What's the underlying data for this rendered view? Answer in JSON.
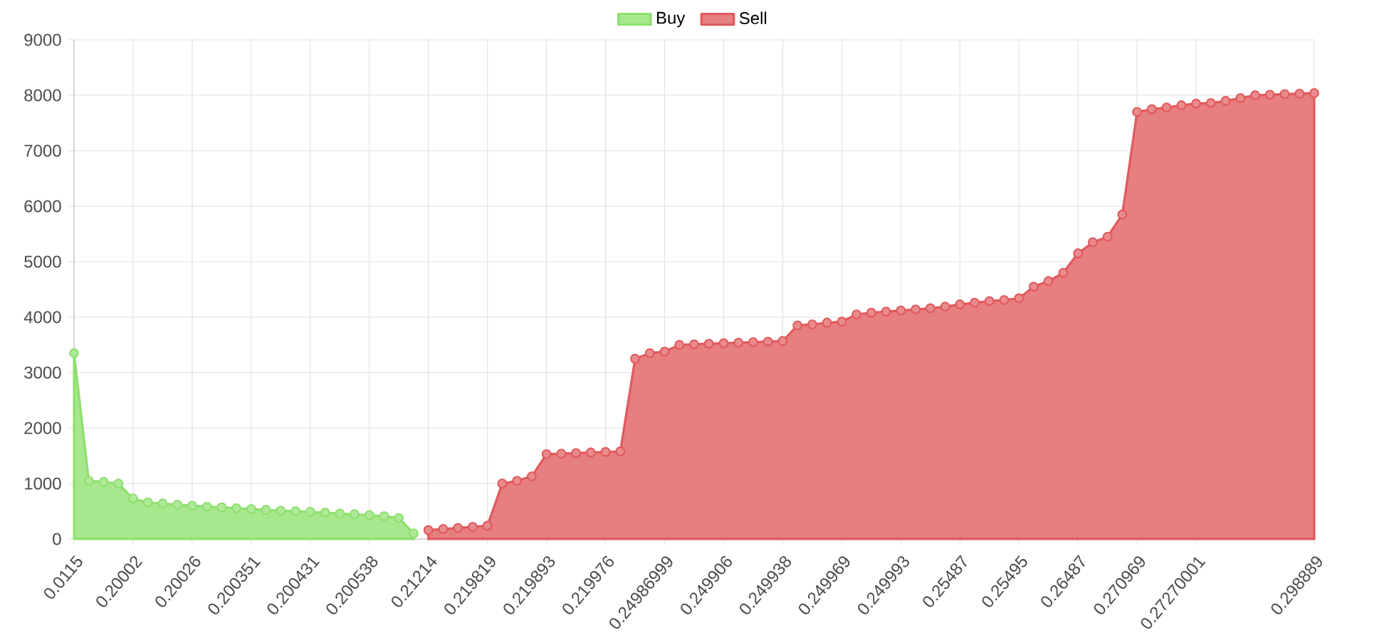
{
  "chart_data": {
    "type": "area",
    "categories": [
      "0.0115",
      null,
      null,
      null,
      "0.20002",
      null,
      null,
      null,
      "0.20026",
      null,
      null,
      null,
      "0.200351",
      null,
      null,
      null,
      "0.200431",
      null,
      null,
      null,
      "0.200538",
      null,
      null,
      null,
      "0.21214",
      null,
      null,
      null,
      "0.219819",
      null,
      null,
      null,
      "0.219893",
      null,
      null,
      null,
      "0.219976",
      null,
      null,
      null,
      "0.24986999",
      null,
      null,
      null,
      "0.249906",
      null,
      null,
      null,
      "0.249938",
      null,
      null,
      null,
      "0.249969",
      null,
      null,
      null,
      "0.249993",
      null,
      null,
      null,
      "0.25487",
      null,
      null,
      null,
      "0.25495",
      null,
      null,
      null,
      "0.26487",
      null,
      null,
      null,
      "0.270969",
      null,
      null,
      null,
      "0.27270001",
      null,
      null,
      null,
      null,
      null,
      null,
      null,
      "0.298889"
    ],
    "series": [
      {
        "name": "Buy",
        "color": "#8ee06e",
        "values": [
          3350,
          1050,
          1030,
          1000,
          730,
          660,
          640,
          620,
          600,
          585,
          570,
          555,
          540,
          525,
          510,
          500,
          490,
          475,
          460,
          445,
          430,
          410,
          380,
          100,
          null,
          null,
          null,
          null,
          null,
          null,
          null,
          null,
          null,
          null,
          null,
          null,
          null,
          null,
          null,
          null,
          null,
          null,
          null,
          null,
          null,
          null,
          null,
          null,
          null,
          null,
          null,
          null,
          null,
          null,
          null,
          null,
          null,
          null,
          null,
          null,
          null,
          null,
          null,
          null,
          null,
          null,
          null,
          null,
          null,
          null,
          null,
          null,
          null,
          null,
          null,
          null,
          null,
          null,
          null,
          null,
          null,
          null,
          null,
          null,
          null
        ]
      },
      {
        "name": "Sell",
        "color": "#e05a5c",
        "values": [
          null,
          null,
          null,
          null,
          null,
          null,
          null,
          null,
          null,
          null,
          null,
          null,
          null,
          null,
          null,
          null,
          null,
          null,
          null,
          null,
          null,
          null,
          null,
          null,
          160,
          180,
          200,
          220,
          240,
          1000,
          1050,
          1130,
          1530,
          1540,
          1550,
          1560,
          1570,
          1580,
          3250,
          3350,
          3380,
          3500,
          3510,
          3520,
          3530,
          3540,
          3550,
          3560,
          3570,
          3850,
          3870,
          3900,
          3920,
          4050,
          4080,
          4100,
          4120,
          4140,
          4160,
          4190,
          4230,
          4260,
          4290,
          4310,
          4340,
          4550,
          4650,
          4800,
          5150,
          5350,
          5450,
          5850,
          7700,
          7750,
          7780,
          7820,
          7850,
          7860,
          7900,
          7950,
          8000,
          8010,
          8020,
          8030,
          8040
        ]
      }
    ],
    "ylim": [
      0,
      9000
    ],
    "yticks": [
      0,
      1000,
      2000,
      3000,
      4000,
      5000,
      6000,
      7000,
      8000,
      9000
    ],
    "grid": true,
    "legend": "top",
    "marker": "circle"
  }
}
